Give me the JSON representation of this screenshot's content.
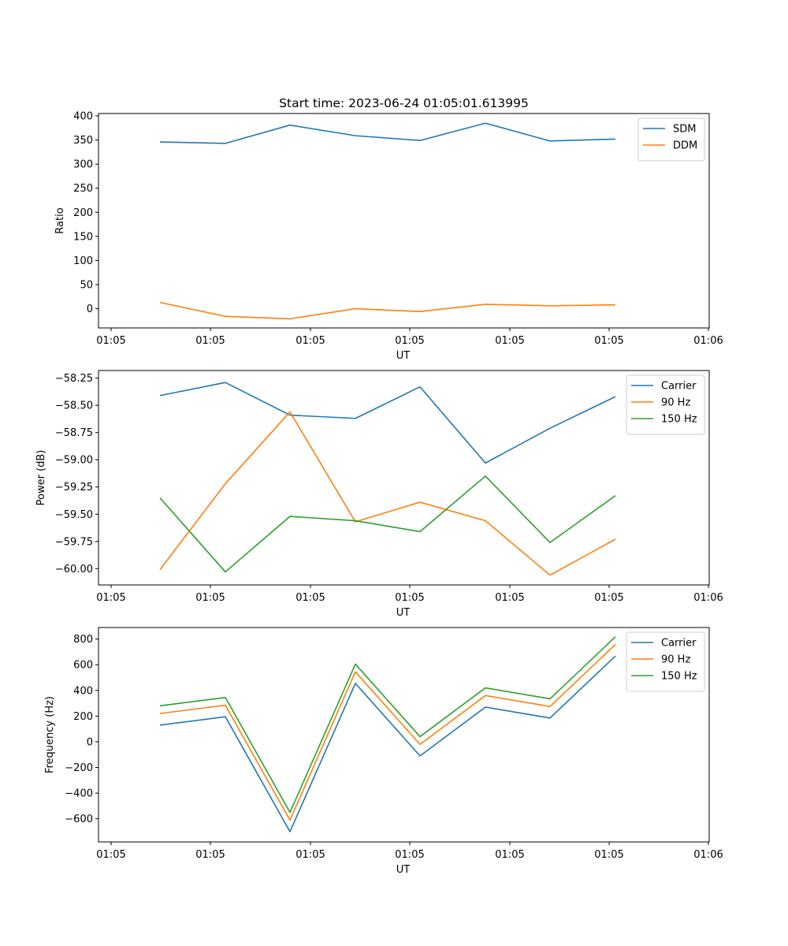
{
  "chart_data": [
    {
      "type": "line",
      "title": "Start time: 2023-06-24 01:05:01.613995",
      "xlabel": "UT",
      "ylabel": "Ratio",
      "x_ticks": [
        "01:05",
        "01:05",
        "01:05",
        "01:05",
        "01:05",
        "01:05",
        "01:05",
        "01:06"
      ],
      "y_ticks": [
        0,
        50,
        100,
        150,
        200,
        250,
        300,
        350,
        400
      ],
      "ylim": [
        -40,
        405
      ],
      "legend_position": "top-right",
      "grid": false,
      "series": [
        {
          "name": "SDM",
          "color": "#1f77b4",
          "values": [
            346,
            343,
            381,
            359,
            349,
            385,
            348,
            352
          ]
        },
        {
          "name": "DDM",
          "color": "#ff7f0e",
          "values": [
            13,
            -16,
            -21,
            0,
            -6,
            9,
            6,
            8
          ]
        }
      ]
    },
    {
      "type": "line",
      "title": "",
      "xlabel": "UT",
      "ylabel": "Power (dB)",
      "x_ticks": [
        "01:05",
        "01:05",
        "01:05",
        "01:05",
        "01:05",
        "01:05",
        "01:05",
        "01:06"
      ],
      "y_ticks": [
        -60.0,
        -59.75,
        -59.5,
        -59.25,
        -59.0,
        -58.75,
        -58.5,
        -58.25
      ],
      "ylim": [
        -60.15,
        -58.18
      ],
      "legend_position": "top-right",
      "grid": false,
      "series": [
        {
          "name": "Carrier",
          "color": "#1f77b4",
          "values": [
            -58.41,
            -58.29,
            -58.59,
            -58.62,
            -58.33,
            -59.03,
            -58.71,
            -58.42
          ]
        },
        {
          "name": "90 Hz",
          "color": "#ff7f0e",
          "values": [
            -60.01,
            -59.22,
            -58.56,
            -59.57,
            -59.39,
            -59.56,
            -60.06,
            -59.73
          ]
        },
        {
          "name": "150 Hz",
          "color": "#2ca02c",
          "values": [
            -59.35,
            -60.03,
            -59.52,
            -59.56,
            -59.66,
            -59.15,
            -59.76,
            -59.33
          ]
        }
      ]
    },
    {
      "type": "line",
      "title": "",
      "xlabel": "UT",
      "ylabel": "Frequency (Hz)",
      "x_ticks": [
        "01:05",
        "01:05",
        "01:05",
        "01:05",
        "01:05",
        "01:05",
        "01:05",
        "01:06"
      ],
      "y_ticks": [
        -600,
        -400,
        -200,
        0,
        200,
        400,
        600,
        800
      ],
      "ylim": [
        -780,
        890
      ],
      "legend_position": "top-right",
      "grid": false,
      "series": [
        {
          "name": "Carrier",
          "color": "#1f77b4",
          "values": [
            130,
            195,
            -700,
            455,
            -110,
            270,
            185,
            668
          ]
        },
        {
          "name": "90 Hz",
          "color": "#ff7f0e",
          "values": [
            220,
            285,
            -610,
            545,
            -20,
            360,
            275,
            758
          ]
        },
        {
          "name": "150 Hz",
          "color": "#2ca02c",
          "values": [
            280,
            345,
            -550,
            605,
            40,
            420,
            335,
            818
          ]
        }
      ]
    }
  ]
}
